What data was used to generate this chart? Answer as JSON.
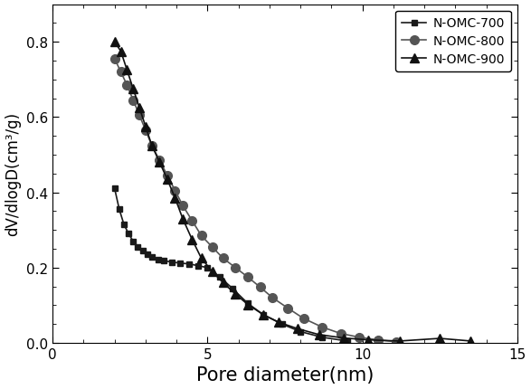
{
  "xlabel": "Pore diameter(nm)",
  "ylabel": "dV/dlogD(cm³/g)",
  "xlim": [
    0,
    15
  ],
  "ylim": [
    0.0,
    0.9
  ],
  "xticks": [
    0,
    5,
    10,
    15
  ],
  "yticks": [
    0.0,
    0.2,
    0.4,
    0.6,
    0.8
  ],
  "series": [
    {
      "label": "N-OMC-700",
      "color": "#1a1a1a",
      "marker": "s",
      "markersize": 5,
      "linewidth": 1.2,
      "x": [
        2.0,
        2.15,
        2.3,
        2.45,
        2.6,
        2.75,
        2.9,
        3.05,
        3.2,
        3.4,
        3.6,
        3.85,
        4.1,
        4.4,
        4.7,
        5.0,
        5.4,
        5.8,
        6.3,
        6.8,
        7.4,
        8.0,
        8.7,
        9.5
      ],
      "y": [
        0.41,
        0.355,
        0.315,
        0.29,
        0.27,
        0.255,
        0.245,
        0.235,
        0.228,
        0.222,
        0.218,
        0.215,
        0.212,
        0.21,
        0.205,
        0.2,
        0.175,
        0.145,
        0.105,
        0.075,
        0.05,
        0.03,
        0.015,
        0.005
      ]
    },
    {
      "label": "N-OMC-800",
      "color": "#555555",
      "marker": "o",
      "markersize": 7,
      "linewidth": 1.2,
      "x": [
        2.0,
        2.2,
        2.4,
        2.6,
        2.8,
        3.0,
        3.2,
        3.45,
        3.7,
        3.95,
        4.2,
        4.5,
        4.8,
        5.15,
        5.5,
        5.9,
        6.3,
        6.7,
        7.1,
        7.6,
        8.1,
        8.7,
        9.3,
        9.9,
        10.5,
        11.1
      ],
      "y": [
        0.755,
        0.72,
        0.685,
        0.645,
        0.605,
        0.565,
        0.525,
        0.485,
        0.445,
        0.405,
        0.365,
        0.325,
        0.285,
        0.255,
        0.225,
        0.2,
        0.175,
        0.148,
        0.12,
        0.092,
        0.065,
        0.042,
        0.025,
        0.015,
        0.008,
        0.003
      ]
    },
    {
      "label": "N-OMC-900",
      "color": "#111111",
      "marker": "^",
      "markersize": 7,
      "linewidth": 1.2,
      "x": [
        2.0,
        2.2,
        2.4,
        2.6,
        2.8,
        3.0,
        3.2,
        3.45,
        3.7,
        3.95,
        4.2,
        4.5,
        4.8,
        5.15,
        5.5,
        5.9,
        6.3,
        6.8,
        7.3,
        7.9,
        8.6,
        9.4,
        10.2,
        11.2,
        12.5,
        13.5
      ],
      "y": [
        0.8,
        0.775,
        0.725,
        0.675,
        0.625,
        0.575,
        0.525,
        0.48,
        0.435,
        0.385,
        0.33,
        0.275,
        0.225,
        0.19,
        0.16,
        0.13,
        0.102,
        0.075,
        0.055,
        0.038,
        0.022,
        0.013,
        0.008,
        0.005,
        0.012,
        0.005
      ]
    }
  ],
  "legend_loc": "upper right",
  "background_color": "#ffffff",
  "tick_fontsize": 11,
  "xlabel_fontsize": 15,
  "ylabel_fontsize": 12,
  "legend_fontsize": 10
}
